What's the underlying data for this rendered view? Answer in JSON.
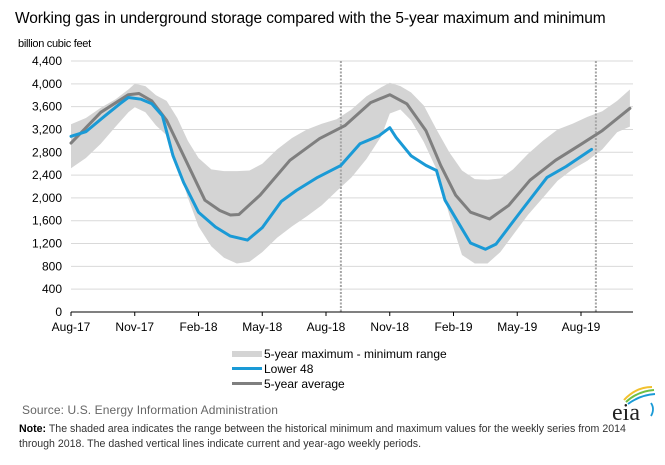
{
  "chart_data": {
    "type": "area",
    "title": "Working gas in underground  storage compared with the 5-year maximum and minimum",
    "ylabel": "billion cubic feet",
    "xlabel": "",
    "ylim": [
      0,
      4400
    ],
    "yticks": [
      "0",
      "400",
      "800",
      "1,200",
      "1,600",
      "2,000",
      "2,400",
      "2,800",
      "3,200",
      "3,600",
      "4,000",
      "4,400"
    ],
    "ytick_values": [
      0,
      400,
      800,
      1200,
      1600,
      2000,
      2400,
      2800,
      3200,
      3600,
      4000,
      4400
    ],
    "x_unit": "months since Aug-17",
    "xlim": [
      0,
      26.3
    ],
    "xticks": [
      "Aug-17",
      "Nov-17",
      "Feb-18",
      "May-18",
      "Aug-18",
      "Nov-18",
      "Feb-19",
      "May-19",
      "Aug-19"
    ],
    "xtick_values": [
      0,
      3,
      6,
      9,
      12,
      15,
      18,
      21,
      24
    ],
    "grid": true,
    "legend_position": "bottom-center",
    "dashed_vlines": [
      {
        "x": 12.7,
        "label": "year-ago week"
      },
      {
        "x": 24.7,
        "label": "current week"
      }
    ],
    "series": [
      {
        "name": "5-year maximum - minimum range",
        "kind": "band",
        "color": "#d4d4d4",
        "x": [
          0,
          0.7,
          1.4,
          2.1,
          2.7,
          3.0,
          3.5,
          4.0,
          4.5,
          5.0,
          5.5,
          6.0,
          6.6,
          7.2,
          7.8,
          8.4,
          9.0,
          9.7,
          10.4,
          11.1,
          11.8,
          12.5,
          13.2,
          13.9,
          14.6,
          15.0,
          15.5,
          16.0,
          16.6,
          17.2,
          17.8,
          18.4,
          19.0,
          19.6,
          20.2,
          20.8,
          21.5,
          22.2,
          22.9,
          23.6,
          24.3,
          25.0,
          25.7,
          26.3
        ],
        "max": [
          3290,
          3400,
          3580,
          3730,
          3900,
          4000,
          3960,
          3800,
          3700,
          3400,
          3000,
          2700,
          2500,
          2470,
          2470,
          2480,
          2600,
          2850,
          3050,
          3200,
          3300,
          3380,
          3550,
          3780,
          3940,
          4020,
          3960,
          3850,
          3620,
          3200,
          2800,
          2480,
          2330,
          2320,
          2340,
          2500,
          2770,
          3000,
          3200,
          3300,
          3420,
          3520,
          3700,
          3900
        ],
        "min": [
          2520,
          2700,
          2950,
          3250,
          3500,
          3590,
          3500,
          3270,
          3100,
          2600,
          2000,
          1500,
          1150,
          950,
          850,
          880,
          1050,
          1300,
          1500,
          1680,
          1870,
          2120,
          2360,
          2680,
          3080,
          3480,
          3550,
          3360,
          2980,
          2500,
          1700,
          1000,
          850,
          850,
          1050,
          1350,
          1700,
          2000,
          2300,
          2500,
          2650,
          2850,
          3150,
          3250
        ]
      },
      {
        "name": "Lower 48",
        "kind": "line",
        "color": "#1a9ad6",
        "x": [
          0,
          0.7,
          1.6,
          2.3,
          2.7,
          3.3,
          3.8,
          4.3,
          4.8,
          5.3,
          6.0,
          6.8,
          7.5,
          8.3,
          9.0,
          9.9,
          10.6,
          11.6,
          12.7,
          13.6,
          14.5,
          15.0,
          15.3,
          16.0,
          16.7,
          17.2,
          17.6,
          18.3,
          18.8,
          19.5,
          20.0,
          21.2,
          22.4,
          23.3,
          24.5
        ],
        "values": [
          3080,
          3160,
          3440,
          3650,
          3760,
          3730,
          3650,
          3440,
          2740,
          2270,
          1750,
          1490,
          1330,
          1260,
          1480,
          1940,
          2130,
          2360,
          2570,
          2950,
          3090,
          3230,
          3060,
          2740,
          2570,
          2480,
          1960,
          1520,
          1210,
          1100,
          1190,
          1780,
          2360,
          2550,
          2850
        ]
      },
      {
        "name": "5-year average",
        "kind": "line",
        "color": "#7f7f7f",
        "x": [
          0,
          1.4,
          2.7,
          3.2,
          3.8,
          4.5,
          5.4,
          6.3,
          7.0,
          7.5,
          7.9,
          8.9,
          10.3,
          11.7,
          12.9,
          14.1,
          15.0,
          15.8,
          16.7,
          17.4,
          18.1,
          18.8,
          19.7,
          20.6,
          21.6,
          22.8,
          24.0,
          25.0,
          26.3
        ],
        "values": [
          2960,
          3500,
          3810,
          3830,
          3700,
          3360,
          2660,
          1960,
          1780,
          1700,
          1710,
          2050,
          2660,
          3040,
          3270,
          3670,
          3810,
          3650,
          3180,
          2570,
          2050,
          1750,
          1630,
          1870,
          2310,
          2660,
          2940,
          3180,
          3570
        ]
      }
    ]
  },
  "legend": {
    "range": "5-year maximum - minimum range",
    "lower48": "Lower 48",
    "avg": "5-year average"
  },
  "footer": {
    "source": "Source:  U.S. Energy Information Administration",
    "note_label": "Note:",
    "note_text": " The shaded area indicates the range between the historical minimum and maximum values for the weekly series from 2014 through 2018. The dashed vertical lines indicate current and year-ago weekly periods.",
    "logo_text": "eia"
  },
  "colors": {
    "lower48": "#1a9ad6",
    "average": "#7f7f7f",
    "range": "#d4d4d4",
    "grid": "#d9d9d9"
  }
}
